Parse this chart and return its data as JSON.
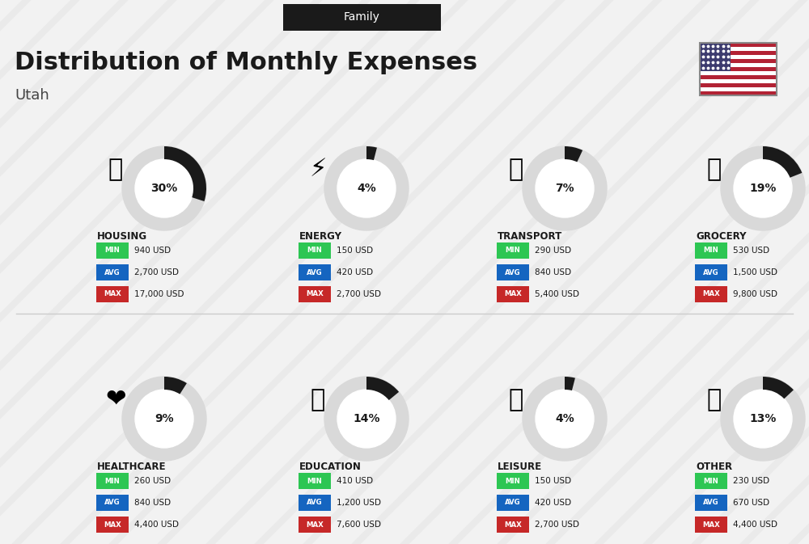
{
  "title": "Distribution of Monthly Expenses",
  "subtitle": "Utah",
  "header_tag": "Family",
  "bg_color": "#f0f0f0",
  "categories": [
    {
      "name": "HOUSING",
      "pct": 30,
      "min": "940 USD",
      "avg": "2,700 USD",
      "max": "17,000 USD",
      "row": 0,
      "col": 0,
      "emoji": "🏗"
    },
    {
      "name": "ENERGY",
      "pct": 4,
      "min": "150 USD",
      "avg": "420 USD",
      "max": "2,700 USD",
      "row": 0,
      "col": 1,
      "emoji": "⚡"
    },
    {
      "name": "TRANSPORT",
      "pct": 7,
      "min": "290 USD",
      "avg": "840 USD",
      "max": "5,400 USD",
      "row": 0,
      "col": 2,
      "emoji": "🚌"
    },
    {
      "name": "GROCERY",
      "pct": 19,
      "min": "530 USD",
      "avg": "1,500 USD",
      "max": "9,800 USD",
      "row": 0,
      "col": 3,
      "emoji": "🛒"
    },
    {
      "name": "HEALTHCARE",
      "pct": 9,
      "min": "260 USD",
      "avg": "840 USD",
      "max": "4,400 USD",
      "row": 1,
      "col": 0,
      "emoji": "❤"
    },
    {
      "name": "EDUCATION",
      "pct": 14,
      "min": "410 USD",
      "avg": "1,200 USD",
      "max": "7,600 USD",
      "row": 1,
      "col": 1,
      "emoji": "🎓"
    },
    {
      "name": "LEISURE",
      "pct": 4,
      "min": "150 USD",
      "avg": "420 USD",
      "max": "2,700 USD",
      "row": 1,
      "col": 2,
      "emoji": "🛍"
    },
    {
      "name": "OTHER",
      "pct": 13,
      "min": "230 USD",
      "avg": "670 USD",
      "max": "4,400 USD",
      "row": 1,
      "col": 3,
      "emoji": "💰"
    }
  ],
  "min_color": "#2dc653",
  "avg_color": "#1565c0",
  "max_color": "#c62828",
  "label_color_min": "#ffffff",
  "label_color_avg": "#ffffff",
  "label_color_max": "#ffffff",
  "donut_bg": "#d9d9d9",
  "donut_fg": "#1a1a1a",
  "donut_text_color": "#1a1a1a"
}
